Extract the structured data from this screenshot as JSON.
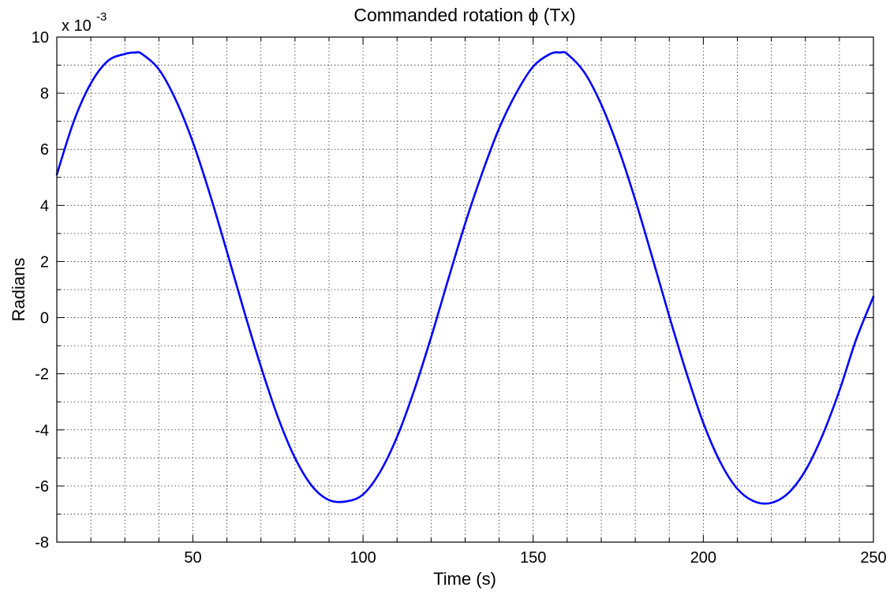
{
  "chart_data": {
    "type": "line",
    "title": "Commanded rotation ϕ (Tx)",
    "xlabel": "Time (s)",
    "ylabel": "Radians",
    "y_scale_multiplier": "x 10",
    "y_scale_exponent": "-3",
    "xlim": [
      10,
      250
    ],
    "ylim": [
      -8,
      10
    ],
    "x_ticks": [
      50,
      100,
      150,
      200,
      250
    ],
    "y_ticks": [
      -8,
      -6,
      -4,
      -2,
      0,
      2,
      4,
      6,
      8,
      10
    ],
    "grid": true,
    "series": [
      {
        "color": "#0000ff",
        "x": [
          10,
          15,
          20,
          25,
          30,
          33,
          35,
          40,
          45,
          50,
          55,
          60,
          65,
          70,
          75,
          80,
          85,
          90,
          95,
          100,
          105,
          110,
          115,
          120,
          125,
          130,
          135,
          140,
          145,
          150,
          155,
          158,
          160,
          165,
          170,
          175,
          180,
          185,
          190,
          195,
          200,
          205,
          210,
          215,
          220,
          225,
          230,
          235,
          240,
          245,
          250
        ],
        "y": [
          5.1,
          7.0,
          8.35,
          9.15,
          9.4,
          9.45,
          9.4,
          8.85,
          7.75,
          6.25,
          4.4,
          2.35,
          0.25,
          -1.75,
          -3.55,
          -5.0,
          -6.0,
          -6.5,
          -6.55,
          -6.3,
          -5.5,
          -4.25,
          -2.6,
          -0.7,
          1.35,
          3.35,
          5.15,
          6.75,
          8.0,
          8.95,
          9.4,
          9.45,
          9.4,
          8.75,
          7.6,
          6.05,
          4.2,
          2.15,
          0.05,
          -1.95,
          -3.75,
          -5.15,
          -6.1,
          -6.55,
          -6.6,
          -6.25,
          -5.45,
          -4.2,
          -2.6,
          -0.75,
          0.75
        ]
      }
    ]
  }
}
